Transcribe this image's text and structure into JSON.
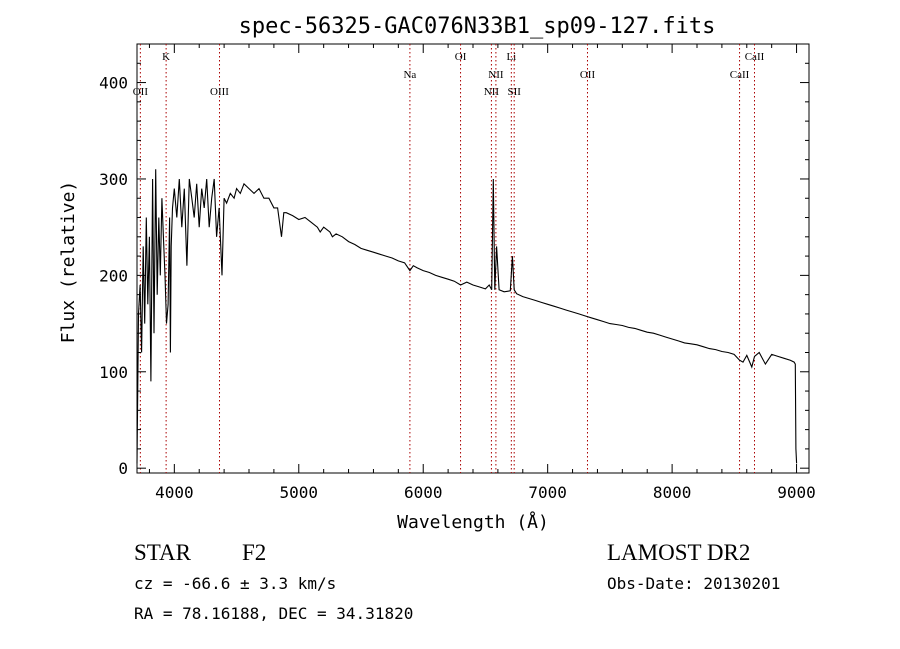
{
  "chart_data": {
    "type": "line",
    "title": "spec-56325-GAC076N33B1_sp09-127.fits",
    "xlabel": "Wavelength (Å)",
    "ylabel": "Flux (relative)",
    "xlim": [
      3700,
      9100
    ],
    "ylim": [
      -5,
      440
    ],
    "x_ticks": [
      4000,
      5000,
      6000,
      7000,
      8000,
      9000
    ],
    "y_ticks": [
      0,
      100,
      200,
      300,
      400
    ],
    "grid": false,
    "series": [
      {
        "x": [
          3700,
          3712,
          3725,
          3737,
          3750,
          3762,
          3775,
          3787,
          3800,
          3812,
          3825,
          3837,
          3850,
          3862,
          3875,
          3887,
          3900,
          3912,
          3925,
          3937,
          3950,
          3962,
          3968,
          3975,
          3985,
          4000,
          4020,
          4040,
          4060,
          4080,
          4101,
          4120,
          4140,
          4160,
          4180,
          4200,
          4220,
          4240,
          4260,
          4280,
          4300,
          4320,
          4340,
          4360,
          4383,
          4400,
          4420,
          4450,
          4480,
          4500,
          4530,
          4560,
          4600,
          4640,
          4680,
          4720,
          4760,
          4800,
          4830,
          4861,
          4880,
          4900,
          4950,
          5000,
          5050,
          5100,
          5150,
          5172,
          5200,
          5250,
          5270,
          5300,
          5350,
          5400,
          5450,
          5500,
          5550,
          5600,
          5650,
          5700,
          5750,
          5800,
          5850,
          5893,
          5920,
          5950,
          6000,
          6050,
          6100,
          6150,
          6200,
          6250,
          6300,
          6350,
          6400,
          6450,
          6500,
          6530,
          6550,
          6563,
          6575,
          6590,
          6610,
          6650,
          6700,
          6717,
          6731,
          6750,
          6800,
          6850,
          6900,
          6950,
          7000,
          7050,
          7100,
          7150,
          7200,
          7250,
          7300,
          7350,
          7400,
          7450,
          7500,
          7550,
          7600,
          7650,
          7700,
          7750,
          7800,
          7850,
          7900,
          7950,
          8000,
          8050,
          8100,
          8150,
          8200,
          8250,
          8300,
          8350,
          8400,
          8450,
          8498,
          8520,
          8542,
          8570,
          8600,
          8640,
          8662,
          8700,
          8750,
          8800,
          8850,
          8900,
          8950,
          8980,
          8990,
          8995,
          9000
        ],
        "y": [
          5,
          160,
          190,
          120,
          230,
          150,
          260,
          170,
          240,
          90,
          300,
          140,
          310,
          180,
          260,
          200,
          280,
          240,
          200,
          150,
          170,
          260,
          120,
          230,
          270,
          290,
          260,
          300,
          250,
          290,
          210,
          300,
          280,
          260,
          295,
          250,
          290,
          270,
          300,
          250,
          280,
          300,
          240,
          270,
          200,
          280,
          275,
          285,
          280,
          290,
          285,
          295,
          290,
          285,
          290,
          280,
          280,
          270,
          270,
          240,
          265,
          265,
          262,
          258,
          260,
          255,
          250,
          245,
          250,
          245,
          240,
          243,
          240,
          235,
          232,
          228,
          226,
          224,
          222,
          220,
          218,
          215,
          213,
          205,
          210,
          208,
          205,
          203,
          200,
          198,
          196,
          194,
          190,
          193,
          190,
          188,
          186,
          190,
          185,
          300,
          185,
          230,
          185,
          183,
          184,
          220,
          185,
          181,
          178,
          176,
          174,
          172,
          170,
          168,
          166,
          164,
          162,
          160,
          158,
          156,
          154,
          152,
          150,
          149,
          148,
          146,
          145,
          143,
          141,
          140,
          138,
          136,
          134,
          132,
          130,
          129,
          128,
          126,
          124,
          123,
          121,
          120,
          118,
          115,
          112,
          110,
          117,
          105,
          116,
          120,
          108,
          118,
          116,
          114,
          112,
          110,
          108,
          20,
          5
        ]
      }
    ],
    "line_markers": [
      {
        "label": "OII",
        "x": 3727,
        "row": 2
      },
      {
        "label": "K",
        "x": 3934,
        "row": 1
      },
      {
        "label": "OIII",
        "x": 4363,
        "row": 2
      },
      {
        "label": "Na",
        "x": 5893,
        "row": 1.5
      },
      {
        "label": "OI",
        "x": 6300,
        "row": 1
      },
      {
        "label": "NII",
        "x": 6548,
        "row": 2
      },
      {
        "label": "NII",
        "x": 6584,
        "row": 1.5
      },
      {
        "label": "Li",
        "x": 6708,
        "row": 1
      },
      {
        "label": "SII",
        "x": 6731,
        "row": 2
      },
      {
        "label": "OII",
        "x": 7320,
        "row": 1.5
      },
      {
        "label": "CaII",
        "x": 8542,
        "row": 1.5
      },
      {
        "label": "CaII",
        "x": 8662,
        "row": 1
      }
    ],
    "marker_color": "#aa0000"
  },
  "footer": {
    "class_label": "STAR",
    "subclass": "F2",
    "survey": "LAMOST DR2",
    "cz": "cz = -66.6 ± 3.3 km/s",
    "obs_date": "Obs-Date: 20130201",
    "coords": "RA =  78.16188, DEC =  34.31820"
  }
}
